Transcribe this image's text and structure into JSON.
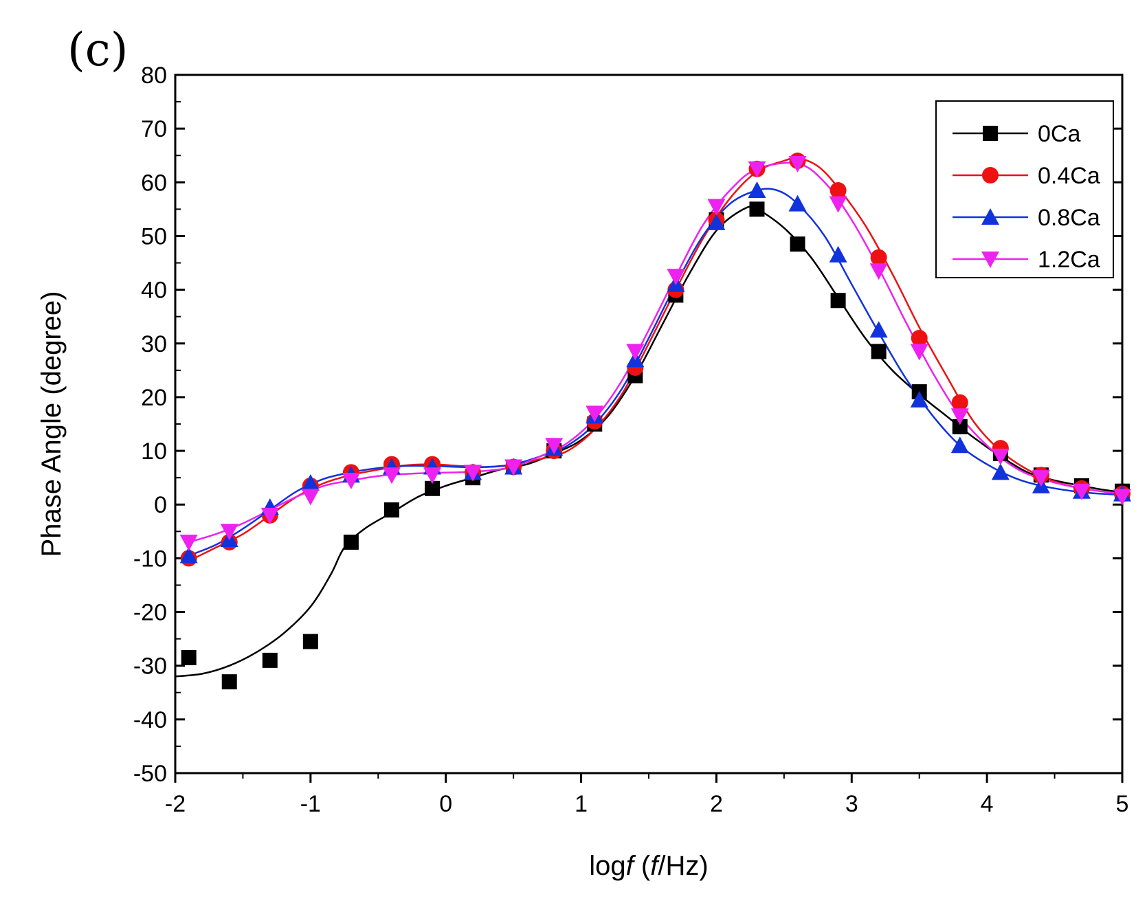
{
  "panel_label": "(c)",
  "chart_data": {
    "type": "scatter",
    "title": "",
    "xlabel_parts": [
      "log",
      "f",
      " (",
      "f",
      "/Hz)"
    ],
    "ylabel": "Phase Angle (degree)",
    "xlim": [
      -2,
      5
    ],
    "ylim": [
      -50,
      80
    ],
    "xticks": [
      -2,
      -1,
      0,
      1,
      2,
      3,
      4,
      5
    ],
    "xtick_labels": [
      "-2",
      "-1",
      "0",
      "1",
      "2",
      "3",
      "4",
      "5"
    ],
    "yticks": [
      -50,
      -40,
      -30,
      -20,
      -10,
      0,
      10,
      20,
      30,
      40,
      50,
      60,
      70,
      80
    ],
    "ytick_labels": [
      "-50",
      "-40",
      "-30",
      "-20",
      "-10",
      "0",
      "10",
      "20",
      "30",
      "40",
      "50",
      "60",
      "70",
      "80"
    ],
    "legend_position": "top-right",
    "x": [
      -1.9,
      -1.6,
      -1.3,
      -1.0,
      -0.7,
      -0.4,
      -0.1,
      0.2,
      0.5,
      0.8,
      1.1,
      1.4,
      1.7,
      2.0,
      2.3,
      2.6,
      2.9,
      3.2,
      3.5,
      3.8,
      4.1,
      4.4,
      4.7,
      5.0
    ],
    "series": [
      {
        "name": "0Ca",
        "color": "#000000",
        "marker": "square",
        "values": [
          -28.5,
          -33,
          -29,
          -25.5,
          -7,
          -1,
          3,
          5,
          7,
          10,
          15,
          24,
          39,
          53,
          55,
          48.5,
          38,
          28.5,
          21,
          14.5,
          9.5,
          5.5,
          3.5,
          2.5
        ],
        "fit": [
          [
            -2.0,
            -32
          ],
          [
            -1.8,
            -31.5
          ],
          [
            -1.6,
            -30
          ],
          [
            -1.4,
            -27.5
          ],
          [
            -1.2,
            -24
          ],
          [
            -1.0,
            -19
          ],
          [
            -0.85,
            -13
          ],
          [
            -0.75,
            -8
          ],
          [
            -0.6,
            -4.5
          ],
          [
            -0.4,
            -1.5
          ],
          [
            -0.2,
            1.5
          ],
          [
            0.0,
            3.5
          ],
          [
            0.2,
            5
          ],
          [
            0.4,
            6.5
          ],
          [
            0.6,
            7.5
          ],
          [
            0.8,
            9.5
          ],
          [
            1.0,
            12
          ],
          [
            1.2,
            16.5
          ],
          [
            1.4,
            24
          ],
          [
            1.6,
            33.5
          ],
          [
            1.8,
            43
          ],
          [
            2.0,
            51
          ],
          [
            2.2,
            55
          ],
          [
            2.3,
            55
          ],
          [
            2.5,
            51.5
          ],
          [
            2.7,
            46
          ],
          [
            2.9,
            38.5
          ],
          [
            3.1,
            31
          ],
          [
            3.3,
            25
          ],
          [
            3.5,
            20.5
          ],
          [
            3.7,
            16.5
          ],
          [
            3.9,
            12.5
          ],
          [
            4.1,
            9
          ],
          [
            4.3,
            6
          ],
          [
            4.5,
            4.5
          ],
          [
            4.7,
            3.5
          ],
          [
            4.85,
            2.8
          ],
          [
            5.0,
            2.3
          ]
        ]
      },
      {
        "name": "0.4Ca",
        "color": "#ee1111",
        "marker": "circle",
        "values": [
          -10,
          -7,
          -2,
          3.5,
          6,
          7.5,
          7.5,
          6,
          7,
          10,
          15.5,
          25.5,
          40,
          53,
          62.5,
          64,
          58.5,
          46,
          31,
          19,
          10.5,
          5.5,
          3,
          2
        ],
        "fit": [
          [
            -1.9,
            -10.5
          ],
          [
            -1.7,
            -8
          ],
          [
            -1.5,
            -5.5
          ],
          [
            -1.3,
            -2
          ],
          [
            -1.1,
            1.5
          ],
          [
            -0.9,
            4
          ],
          [
            -0.7,
            5.5
          ],
          [
            -0.5,
            6.5
          ],
          [
            -0.3,
            7.3
          ],
          [
            -0.1,
            7.5
          ],
          [
            0.1,
            7.2
          ],
          [
            0.3,
            7
          ],
          [
            0.5,
            7.4
          ],
          [
            0.7,
            8.5
          ],
          [
            0.9,
            10
          ],
          [
            1.1,
            14
          ],
          [
            1.3,
            20.5
          ],
          [
            1.5,
            30
          ],
          [
            1.7,
            40
          ],
          [
            1.9,
            49.5
          ],
          [
            2.1,
            57
          ],
          [
            2.3,
            62
          ],
          [
            2.5,
            64
          ],
          [
            2.6,
            64.5
          ],
          [
            2.75,
            63
          ],
          [
            2.9,
            59
          ],
          [
            3.1,
            52
          ],
          [
            3.3,
            43
          ],
          [
            3.5,
            33
          ],
          [
            3.7,
            24
          ],
          [
            3.9,
            15.5
          ],
          [
            4.1,
            10
          ],
          [
            4.3,
            6.5
          ],
          [
            4.5,
            4.3
          ],
          [
            4.7,
            3
          ],
          [
            5.0,
            2
          ]
        ]
      },
      {
        "name": "0.8Ca",
        "color": "#1133dd",
        "marker": "triangle-up",
        "values": [
          -9.5,
          -6.5,
          -0.5,
          4,
          5.5,
          7,
          7,
          6,
          7,
          10.5,
          16.5,
          27,
          41,
          52.5,
          58.5,
          56,
          46.5,
          32.5,
          19.5,
          11,
          6,
          3.5,
          2.5,
          2
        ],
        "fit": [
          [
            -1.9,
            -9.5
          ],
          [
            -1.7,
            -7.5
          ],
          [
            -1.5,
            -4.5
          ],
          [
            -1.3,
            -1
          ],
          [
            -1.1,
            2.5
          ],
          [
            -0.9,
            4.8
          ],
          [
            -0.7,
            6
          ],
          [
            -0.5,
            6.8
          ],
          [
            -0.3,
            7.2
          ],
          [
            -0.1,
            7.2
          ],
          [
            0.1,
            7
          ],
          [
            0.3,
            7
          ],
          [
            0.5,
            7.5
          ],
          [
            0.7,
            9
          ],
          [
            0.9,
            11
          ],
          [
            1.1,
            15
          ],
          [
            1.3,
            21.5
          ],
          [
            1.5,
            31
          ],
          [
            1.7,
            41
          ],
          [
            1.9,
            50
          ],
          [
            2.1,
            56
          ],
          [
            2.3,
            58.5
          ],
          [
            2.45,
            58.5
          ],
          [
            2.6,
            56
          ],
          [
            2.8,
            50
          ],
          [
            3.0,
            41
          ],
          [
            3.2,
            32
          ],
          [
            3.4,
            23.5
          ],
          [
            3.6,
            16.5
          ],
          [
            3.8,
            11
          ],
          [
            4.0,
            7.5
          ],
          [
            4.2,
            5
          ],
          [
            4.4,
            3.5
          ],
          [
            4.7,
            2.3
          ],
          [
            5.0,
            1.8
          ]
        ]
      },
      {
        "name": "1.2Ca",
        "color": "#ee22ee",
        "marker": "triangle-down",
        "values": [
          -7,
          -5,
          -2,
          1.5,
          4.5,
          5.5,
          5.5,
          6,
          7,
          11,
          17,
          28.5,
          42.5,
          55.5,
          62.5,
          63.5,
          56,
          43.5,
          28.5,
          16.5,
          9,
          5,
          2.5,
          1.5
        ],
        "fit": [
          [
            -1.9,
            -7
          ],
          [
            -1.7,
            -5.5
          ],
          [
            -1.5,
            -3.5
          ],
          [
            -1.3,
            -1
          ],
          [
            -1.1,
            1.5
          ],
          [
            -0.9,
            3.5
          ],
          [
            -0.7,
            4.5
          ],
          [
            -0.5,
            5.3
          ],
          [
            -0.3,
            5.7
          ],
          [
            -0.1,
            5.9
          ],
          [
            0.1,
            6
          ],
          [
            0.3,
            6.3
          ],
          [
            0.5,
            7
          ],
          [
            0.7,
            9
          ],
          [
            0.9,
            11.5
          ],
          [
            1.1,
            16
          ],
          [
            1.3,
            23
          ],
          [
            1.5,
            32.5
          ],
          [
            1.7,
            42.5
          ],
          [
            1.9,
            52
          ],
          [
            2.1,
            58.5
          ],
          [
            2.3,
            62.5
          ],
          [
            2.6,
            63.5
          ],
          [
            2.8,
            60
          ],
          [
            3.0,
            53
          ],
          [
            3.2,
            44
          ],
          [
            3.4,
            34
          ],
          [
            3.6,
            24.5
          ],
          [
            3.8,
            16.5
          ],
          [
            4.0,
            11
          ],
          [
            4.2,
            7
          ],
          [
            4.4,
            4.8
          ],
          [
            4.7,
            3
          ],
          [
            5.0,
            2
          ]
        ]
      }
    ]
  }
}
